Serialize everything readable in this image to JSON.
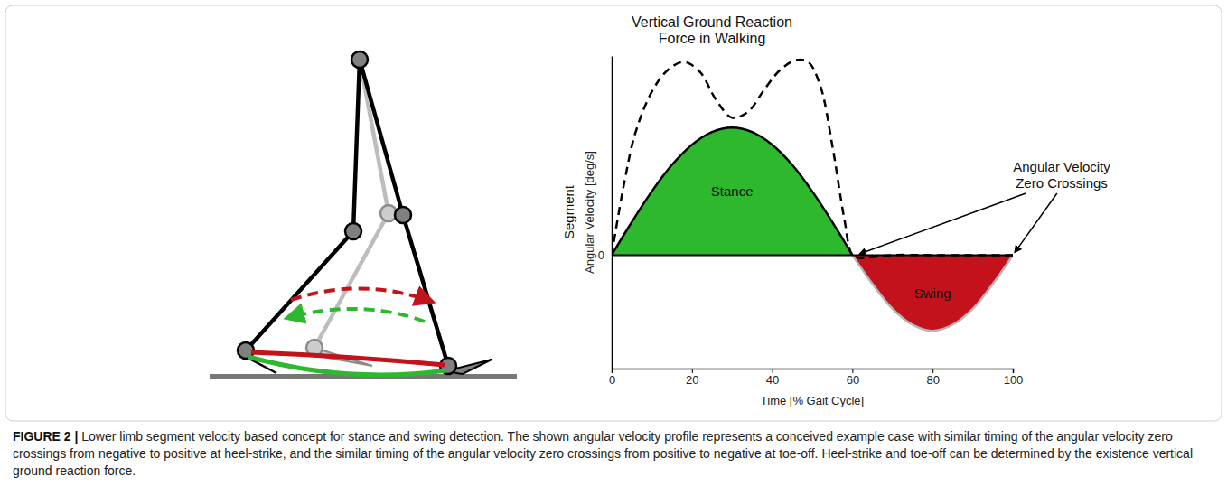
{
  "chart_data": {
    "type": "area",
    "xlabel": "Time [% Gait Cycle]",
    "ylabel": "Angular Velocity [deg/s]",
    "ylabel_group": "Segment",
    "xlim": [
      0,
      100
    ],
    "xticks": [
      0,
      20,
      40,
      60,
      80,
      100
    ],
    "ylim": [
      -0.57,
      1
    ],
    "yticks": [
      0
    ],
    "grid": true,
    "series": [
      {
        "name": "Stance",
        "type": "area",
        "color": "#2db82d",
        "x": [
          0,
          5,
          10,
          15,
          20,
          25,
          30,
          35,
          40,
          45,
          50,
          55,
          60
        ],
        "values": [
          0,
          0.166,
          0.32,
          0.453,
          0.554,
          0.618,
          0.64,
          0.618,
          0.554,
          0.453,
          0.32,
          0.166,
          0
        ]
      },
      {
        "name": "Swing",
        "type": "area",
        "color": "#c4121c",
        "x": [
          60,
          65,
          70,
          75,
          80,
          85,
          90,
          95,
          100
        ],
        "values": [
          0,
          -0.145,
          -0.27,
          -0.35,
          -0.38,
          -0.35,
          -0.27,
          -0.145,
          0
        ]
      },
      {
        "name": "Vertical Ground Reaction Force in Walking",
        "type": "line",
        "line_style": "dashed",
        "color": "#000000",
        "x": [
          0,
          3,
          6,
          10,
          14,
          18,
          22,
          26,
          30,
          34,
          38,
          42,
          46,
          49,
          52,
          55,
          58,
          60,
          62,
          65,
          70,
          80,
          90,
          100
        ],
        "values": [
          0,
          0.35,
          0.62,
          0.82,
          0.93,
          0.97,
          0.92,
          0.78,
          0.69,
          0.72,
          0.83,
          0.93,
          0.98,
          0.97,
          0.85,
          0.55,
          0.18,
          0,
          -0.015,
          -0.01,
          0,
          0,
          0,
          0
        ]
      }
    ],
    "annotations": [
      {
        "text": "Angular Velocity Zero Crossings",
        "x": [
          61,
          100
        ],
        "y": [
          0,
          0
        ]
      }
    ]
  },
  "caption": {
    "label": "FIGURE 2 |",
    "text": "Lower limb segment velocity based concept for stance and swing detection. The shown angular velocity profile represents a conceived example case with similar timing of the angular velocity zero crossings from negative to positive at heel-strike, and the similar timing of the angular velocity zero crossings from positive to negative at toe-off. Heel-strike and toe-off can be determined by the existence vertical ground reaction force."
  }
}
